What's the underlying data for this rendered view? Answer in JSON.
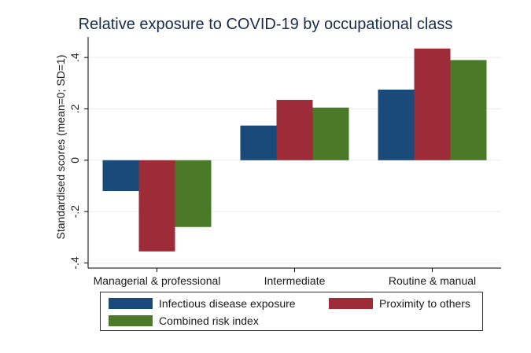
{
  "chart_data": {
    "type": "bar",
    "title": "Relative exposure to COVID-19 by occupational class",
    "ylabel": "Standardised scores (mean=0; SD=1)",
    "xlabel": "",
    "categories": [
      "Managerial & professional",
      "Intermediate",
      "Routine & manual"
    ],
    "series": [
      {
        "name": "Infectious disease exposure",
        "color": "#1a4a7a",
        "values": [
          -0.12,
          0.135,
          0.275
        ]
      },
      {
        "name": "Proximity to others",
        "color": "#9e2b38",
        "values": [
          -0.355,
          0.235,
          0.435
        ]
      },
      {
        "name": "Combined risk index",
        "color": "#4a7a27",
        "values": [
          -0.26,
          0.205,
          0.39
        ]
      }
    ],
    "ylim": [
      -0.42,
      0.48
    ],
    "yticks": [
      -0.4,
      -0.2,
      0,
      0.2,
      0.4
    ],
    "ytick_labels": [
      "-.4",
      "-.2",
      "0",
      ".2",
      ".4"
    ],
    "grid": true,
    "legend_position": "bottom"
  }
}
